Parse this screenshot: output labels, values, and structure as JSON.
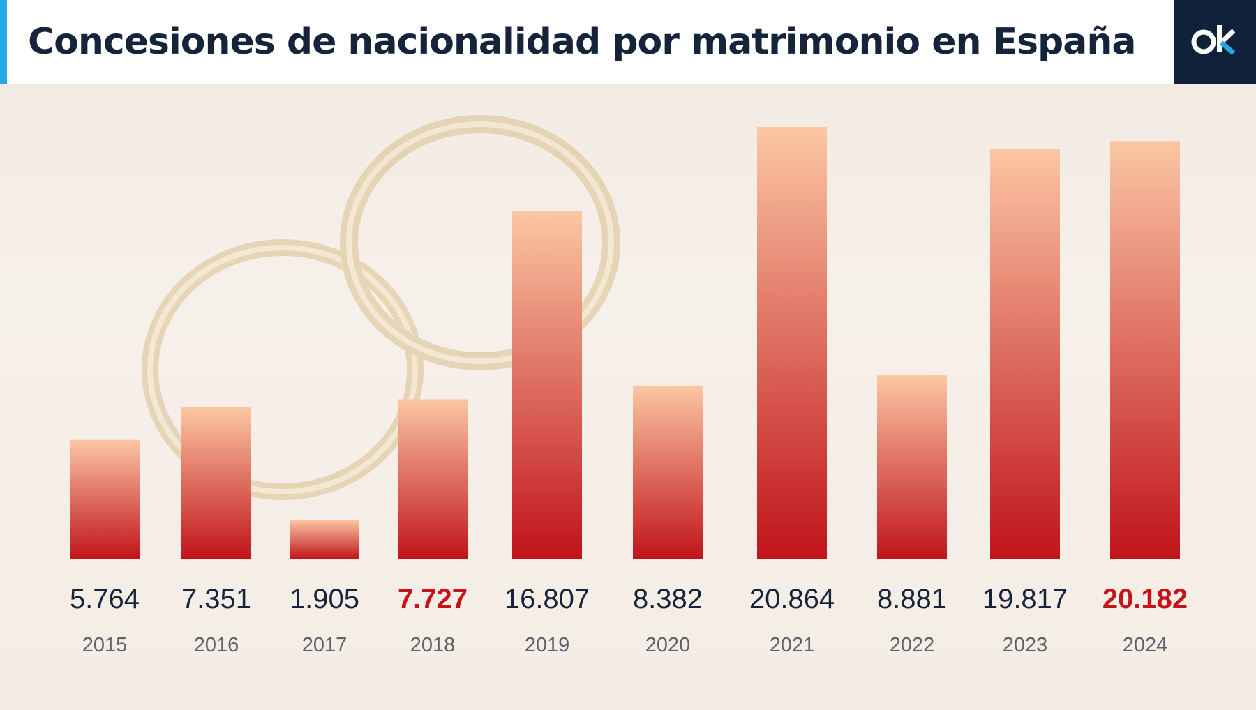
{
  "header": {
    "title": "Concesiones de nacionalidad por matrimonio en España",
    "accent_color": "#27a7e6"
  },
  "logo": {
    "icon": "ok-logo-icon",
    "background": "#0f2239"
  },
  "chart_data": {
    "type": "bar",
    "title": "Concesiones de nacionalidad por matrimonio en España",
    "xlabel": "",
    "ylabel": "",
    "categories": [
      "2015",
      "2016",
      "2017",
      "2018",
      "2019",
      "2020",
      "2021",
      "2022",
      "2023",
      "2024"
    ],
    "values": [
      5764,
      7351,
      1905,
      7727,
      16807,
      8382,
      20864,
      8881,
      19817,
      20182
    ],
    "value_labels": [
      "5.764",
      "7.351",
      "1.905",
      "7.727",
      "16.807",
      "8.382",
      "20.864",
      "8.881",
      "19.817",
      "20.182"
    ],
    "highlighted": [
      "2018",
      "2024"
    ],
    "ylim": [
      0,
      20864
    ],
    "grid": false,
    "legend": "none",
    "colors": {
      "bar_top": "#fbc7a3",
      "bar_bottom": "#c0131a",
      "highlight": "#c5121b"
    }
  }
}
